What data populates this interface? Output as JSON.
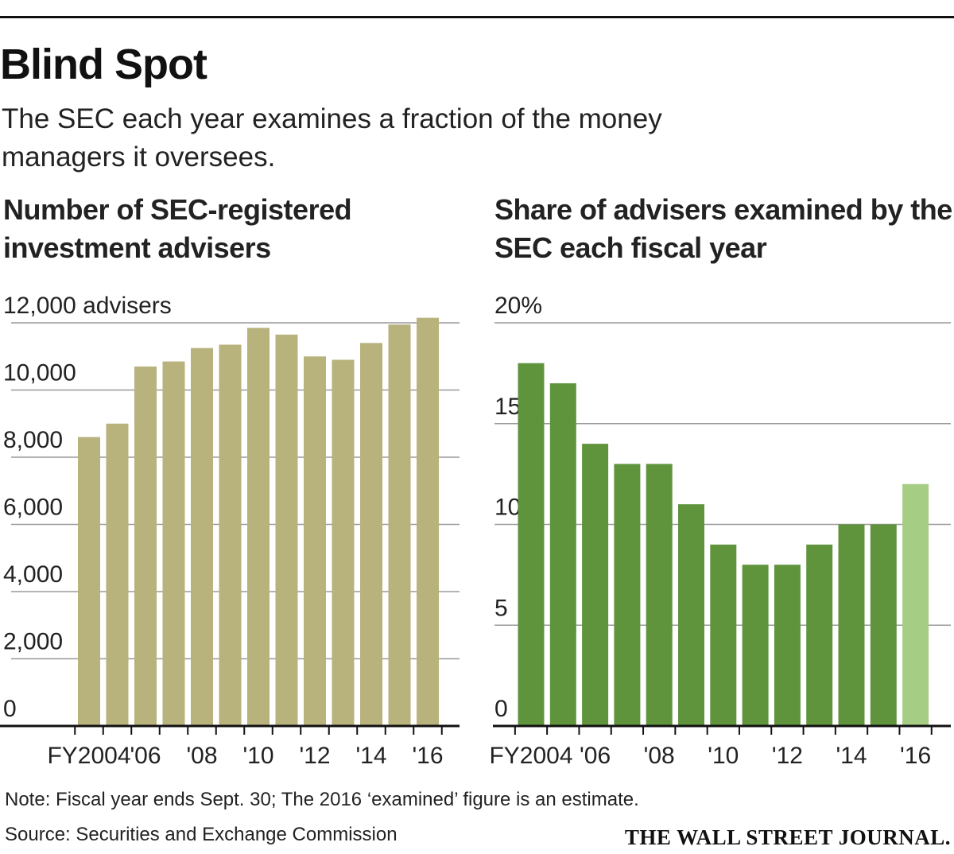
{
  "header": {
    "title": "Blind Spot",
    "subtitle": "The SEC each year examines a fraction of the money managers it oversees."
  },
  "chart_data": [
    {
      "type": "bar",
      "title": "Number of SEC-registered investment advisers",
      "categories": [
        "FY2004",
        "2005",
        "2006",
        "2007",
        "2008",
        "2009",
        "2010",
        "2011",
        "2012",
        "2013",
        "2014",
        "2015",
        "2016"
      ],
      "tick_labels": [
        "FY2004",
        "'06",
        "'08",
        "'10",
        "'12",
        "'14",
        "'16"
      ],
      "tick_categories": [
        "FY2004",
        "2006",
        "2008",
        "2010",
        "2012",
        "2014",
        "2016"
      ],
      "values": [
        8600,
        9000,
        10700,
        10850,
        11250,
        11350,
        11850,
        11650,
        11000,
        10900,
        11400,
        11950,
        12150
      ],
      "y_ticks": [
        0,
        2000,
        4000,
        6000,
        8000,
        10000,
        12000
      ],
      "y_tick_labels": [
        "0",
        "2,000",
        "4,000",
        "6,000",
        "8,000",
        "10,000",
        "12,000 advisers"
      ],
      "ylim": [
        0,
        12000
      ],
      "color": "#b8b27d"
    },
    {
      "type": "bar",
      "title": "Share of advisers examined by the SEC each fiscal year",
      "categories": [
        "FY2004",
        "2005",
        "2006",
        "2007",
        "2008",
        "2009",
        "2010",
        "2011",
        "2012",
        "2013",
        "2014",
        "2015",
        "2016"
      ],
      "tick_labels": [
        "FY2004",
        "'06",
        "'08",
        "'10",
        "'12",
        "'14",
        "'16"
      ],
      "tick_categories": [
        "FY2004",
        "2006",
        "2008",
        "2010",
        "2012",
        "2014",
        "2016"
      ],
      "values": [
        18,
        17,
        14,
        13,
        13,
        11,
        9,
        8,
        8,
        9,
        10,
        10,
        12
      ],
      "estimate": [
        false,
        false,
        false,
        false,
        false,
        false,
        false,
        false,
        false,
        false,
        false,
        false,
        true
      ],
      "y_ticks": [
        0,
        5,
        10,
        15,
        20
      ],
      "y_tick_labels": [
        "0",
        "5",
        "10",
        "15",
        "20%"
      ],
      "ylim": [
        0,
        20
      ],
      "color": "#5f943d",
      "estimate_color": "#a6cd84"
    }
  ],
  "footer": {
    "note": "Note: Fiscal year ends Sept. 30; The 2016 ‘examined’ figure is an estimate.",
    "source": "Source: Securities and Exchange Commission",
    "brand": "THE WALL STREET JOURNAL."
  }
}
